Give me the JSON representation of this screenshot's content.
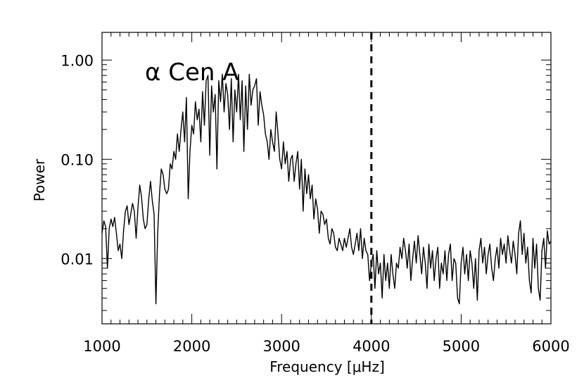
{
  "chart_data": {
    "type": "line",
    "title": "",
    "annotation": "α Cen A",
    "xlabel": "Frequency [μHz]",
    "ylabel": "Power",
    "xlim": [
      1000,
      6000
    ],
    "ylim": [
      0.0022,
      1.9
    ],
    "yscale": "log",
    "grid": false,
    "x_ticks": [
      {
        "value": 1000,
        "label": "1000"
      },
      {
        "value": 2000,
        "label": "2000"
      },
      {
        "value": 3000,
        "label": "3000"
      },
      {
        "value": 4000,
        "label": "4000"
      },
      {
        "value": 5000,
        "label": "5000"
      },
      {
        "value": 6000,
        "label": "6000"
      }
    ],
    "y_ticks": [
      {
        "value": 0.01,
        "label": "0.01"
      },
      {
        "value": 0.1,
        "label": "0.10"
      },
      {
        "value": 1.0,
        "label": "1.00"
      }
    ],
    "reference_lines": [
      {
        "axis": "x",
        "value": 4000,
        "style": "dashed"
      }
    ],
    "series": [
      {
        "color": "#000000",
        "points": [
          [
            1000,
            0.018
          ],
          [
            1020,
            0.024
          ],
          [
            1040,
            0.021
          ],
          [
            1060,
            0.008
          ],
          [
            1080,
            0.02
          ],
          [
            1100,
            0.025
          ],
          [
            1120,
            0.021
          ],
          [
            1140,
            0.026
          ],
          [
            1160,
            0.018
          ],
          [
            1180,
            0.012
          ],
          [
            1200,
            0.014
          ],
          [
            1220,
            0.01
          ],
          [
            1240,
            0.019
          ],
          [
            1260,
            0.03
          ],
          [
            1280,
            0.034
          ],
          [
            1300,
            0.022
          ],
          [
            1320,
            0.028
          ],
          [
            1340,
            0.036
          ],
          [
            1360,
            0.03
          ],
          [
            1380,
            0.016
          ],
          [
            1400,
            0.032
          ],
          [
            1420,
            0.055
          ],
          [
            1440,
            0.042
          ],
          [
            1460,
            0.025
          ],
          [
            1480,
            0.02
          ],
          [
            1500,
            0.022
          ],
          [
            1520,
            0.04
          ],
          [
            1540,
            0.06
          ],
          [
            1560,
            0.038
          ],
          [
            1580,
            0.028
          ],
          [
            1600,
            0.0035
          ],
          [
            1620,
            0.018
          ],
          [
            1640,
            0.045
          ],
          [
            1660,
            0.08
          ],
          [
            1680,
            0.07
          ],
          [
            1700,
            0.05
          ],
          [
            1720,
            0.045
          ],
          [
            1740,
            0.05
          ],
          [
            1760,
            0.09
          ],
          [
            1780,
            0.08
          ],
          [
            1800,
            0.12
          ],
          [
            1820,
            0.1
          ],
          [
            1840,
            0.18
          ],
          [
            1860,
            0.12
          ],
          [
            1880,
            0.2
          ],
          [
            1900,
            0.3
          ],
          [
            1920,
            0.15
          ],
          [
            1940,
            0.42
          ],
          [
            1960,
            0.04
          ],
          [
            1980,
            0.12
          ],
          [
            2000,
            0.22
          ],
          [
            2020,
            0.18
          ],
          [
            2040,
            0.38
          ],
          [
            2060,
            0.25
          ],
          [
            2080,
            0.32
          ],
          [
            2100,
            0.15
          ],
          [
            2120,
            0.48
          ],
          [
            2140,
            0.22
          ],
          [
            2160,
            0.62
          ],
          [
            2180,
            0.7
          ],
          [
            2200,
            0.11
          ],
          [
            2220,
            0.55
          ],
          [
            2240,
            0.3
          ],
          [
            2260,
            0.45
          ],
          [
            2280,
            0.08
          ],
          [
            2300,
            0.62
          ],
          [
            2320,
            0.38
          ],
          [
            2340,
            0.72
          ],
          [
            2360,
            0.3
          ],
          [
            2380,
            0.58
          ],
          [
            2400,
            0.45
          ],
          [
            2420,
            0.2
          ],
          [
            2440,
            0.65
          ],
          [
            2460,
            0.15
          ],
          [
            2480,
            0.5
          ],
          [
            2500,
            0.3
          ],
          [
            2520,
            0.72
          ],
          [
            2540,
            0.25
          ],
          [
            2560,
            0.62
          ],
          [
            2580,
            0.12
          ],
          [
            2600,
            0.55
          ],
          [
            2620,
            0.2
          ],
          [
            2640,
            0.72
          ],
          [
            2660,
            0.35
          ],
          [
            2680,
            0.5
          ],
          [
            2700,
            0.55
          ],
          [
            2720,
            0.65
          ],
          [
            2740,
            0.22
          ],
          [
            2760,
            0.48
          ],
          [
            2780,
            0.35
          ],
          [
            2800,
            0.28
          ],
          [
            2820,
            0.18
          ],
          [
            2840,
            0.15
          ],
          [
            2860,
            0.1
          ],
          [
            2880,
            0.2
          ],
          [
            2900,
            0.15
          ],
          [
            2920,
            0.12
          ],
          [
            2940,
            0.3
          ],
          [
            2960,
            0.18
          ],
          [
            2980,
            0.1
          ],
          [
            3000,
            0.08
          ],
          [
            3020,
            0.15
          ],
          [
            3040,
            0.09
          ],
          [
            3060,
            0.12
          ],
          [
            3080,
            0.06
          ],
          [
            3100,
            0.1
          ],
          [
            3120,
            0.11
          ],
          [
            3140,
            0.06
          ],
          [
            3160,
            0.09
          ],
          [
            3180,
            0.12
          ],
          [
            3200,
            0.05
          ],
          [
            3220,
            0.1
          ],
          [
            3240,
            0.03
          ],
          [
            3260,
            0.08
          ],
          [
            3280,
            0.045
          ],
          [
            3300,
            0.07
          ],
          [
            3320,
            0.04
          ],
          [
            3340,
            0.055
          ],
          [
            3360,
            0.025
          ],
          [
            3380,
            0.04
          ],
          [
            3400,
            0.032
          ],
          [
            3420,
            0.018
          ],
          [
            3440,
            0.03
          ],
          [
            3460,
            0.028
          ],
          [
            3480,
            0.022
          ],
          [
            3500,
            0.025
          ],
          [
            3520,
            0.016
          ],
          [
            3540,
            0.014
          ],
          [
            3560,
            0.02
          ],
          [
            3580,
            0.018
          ],
          [
            3600,
            0.013
          ],
          [
            3620,
            0.012
          ],
          [
            3640,
            0.016
          ],
          [
            3660,
            0.014
          ],
          [
            3680,
            0.012
          ],
          [
            3700,
            0.016
          ],
          [
            3720,
            0.013
          ],
          [
            3740,
            0.016
          ],
          [
            3760,
            0.02
          ],
          [
            3780,
            0.013
          ],
          [
            3800,
            0.011
          ],
          [
            3820,
            0.014
          ],
          [
            3840,
            0.018
          ],
          [
            3860,
            0.012
          ],
          [
            3880,
            0.02
          ],
          [
            3900,
            0.01
          ],
          [
            3920,
            0.016
          ],
          [
            3940,
            0.012
          ],
          [
            3960,
            0.011
          ],
          [
            3980,
            0.006
          ],
          [
            4000,
            0.009
          ],
          [
            4020,
            0.011
          ],
          [
            4040,
            0.005
          ],
          [
            4060,
            0.012
          ],
          [
            4080,
            0.007
          ],
          [
            4100,
            0.009
          ],
          [
            4120,
            0.004
          ],
          [
            4140,
            0.011
          ],
          [
            4160,
            0.006
          ],
          [
            4180,
            0.009
          ],
          [
            4200,
            0.005
          ],
          [
            4220,
            0.011
          ],
          [
            4240,
            0.007
          ],
          [
            4260,
            0.005
          ],
          [
            4280,
            0.009
          ],
          [
            4300,
            0.008
          ],
          [
            4320,
            0.013
          ],
          [
            4340,
            0.01
          ],
          [
            4360,
            0.016
          ],
          [
            4380,
            0.012
          ],
          [
            4400,
            0.008
          ],
          [
            4420,
            0.014
          ],
          [
            4440,
            0.006
          ],
          [
            4460,
            0.01
          ],
          [
            4480,
            0.015
          ],
          [
            4500,
            0.009
          ],
          [
            4520,
            0.017
          ],
          [
            4540,
            0.011
          ],
          [
            4560,
            0.007
          ],
          [
            4580,
            0.013
          ],
          [
            4600,
            0.009
          ],
          [
            4620,
            0.005
          ],
          [
            4640,
            0.014
          ],
          [
            4660,
            0.008
          ],
          [
            4680,
            0.012
          ],
          [
            4700,
            0.006
          ],
          [
            4720,
            0.01
          ],
          [
            4740,
            0.013
          ],
          [
            4760,
            0.005
          ],
          [
            4780,
            0.009
          ],
          [
            4800,
            0.007
          ],
          [
            4820,
            0.012
          ],
          [
            4840,
            0.006
          ],
          [
            4860,
            0.011
          ],
          [
            4880,
            0.014
          ],
          [
            4900,
            0.006
          ],
          [
            4920,
            0.01
          ],
          [
            4940,
            0.009
          ],
          [
            4960,
            0.004
          ],
          [
            4980,
            0.0035
          ],
          [
            5000,
            0.009
          ],
          [
            5020,
            0.013
          ],
          [
            5040,
            0.007
          ],
          [
            5060,
            0.011
          ],
          [
            5080,
            0.006
          ],
          [
            5100,
            0.012
          ],
          [
            5120,
            0.009
          ],
          [
            5140,
            0.005
          ],
          [
            5160,
            0.01
          ],
          [
            5180,
            0.0038
          ],
          [
            5200,
            0.012
          ],
          [
            5220,
            0.016
          ],
          [
            5240,
            0.009
          ],
          [
            5260,
            0.013
          ],
          [
            5280,
            0.007
          ],
          [
            5300,
            0.011
          ],
          [
            5320,
            0.014
          ],
          [
            5340,
            0.008
          ],
          [
            5360,
            0.006
          ],
          [
            5380,
            0.01
          ],
          [
            5400,
            0.013
          ],
          [
            5420,
            0.008
          ],
          [
            5440,
            0.016
          ],
          [
            5460,
            0.011
          ],
          [
            5480,
            0.014
          ],
          [
            5500,
            0.009
          ],
          [
            5520,
            0.017
          ],
          [
            5540,
            0.012
          ],
          [
            5560,
            0.009
          ],
          [
            5580,
            0.015
          ],
          [
            5600,
            0.011
          ],
          [
            5620,
            0.007
          ],
          [
            5640,
            0.018
          ],
          [
            5660,
            0.024
          ],
          [
            5680,
            0.011
          ],
          [
            5700,
            0.018
          ],
          [
            5720,
            0.009
          ],
          [
            5740,
            0.013
          ],
          [
            5760,
            0.006
          ],
          [
            5780,
            0.0045
          ],
          [
            5800,
            0.016
          ],
          [
            5820,
            0.008
          ],
          [
            5840,
            0.014
          ],
          [
            5860,
            0.005
          ],
          [
            5880,
            0.0038
          ],
          [
            5900,
            0.012
          ],
          [
            5920,
            0.016
          ],
          [
            5940,
            0.008
          ],
          [
            5960,
            0.019
          ],
          [
            5980,
            0.014
          ],
          [
            6000,
            0.015
          ]
        ]
      }
    ]
  }
}
